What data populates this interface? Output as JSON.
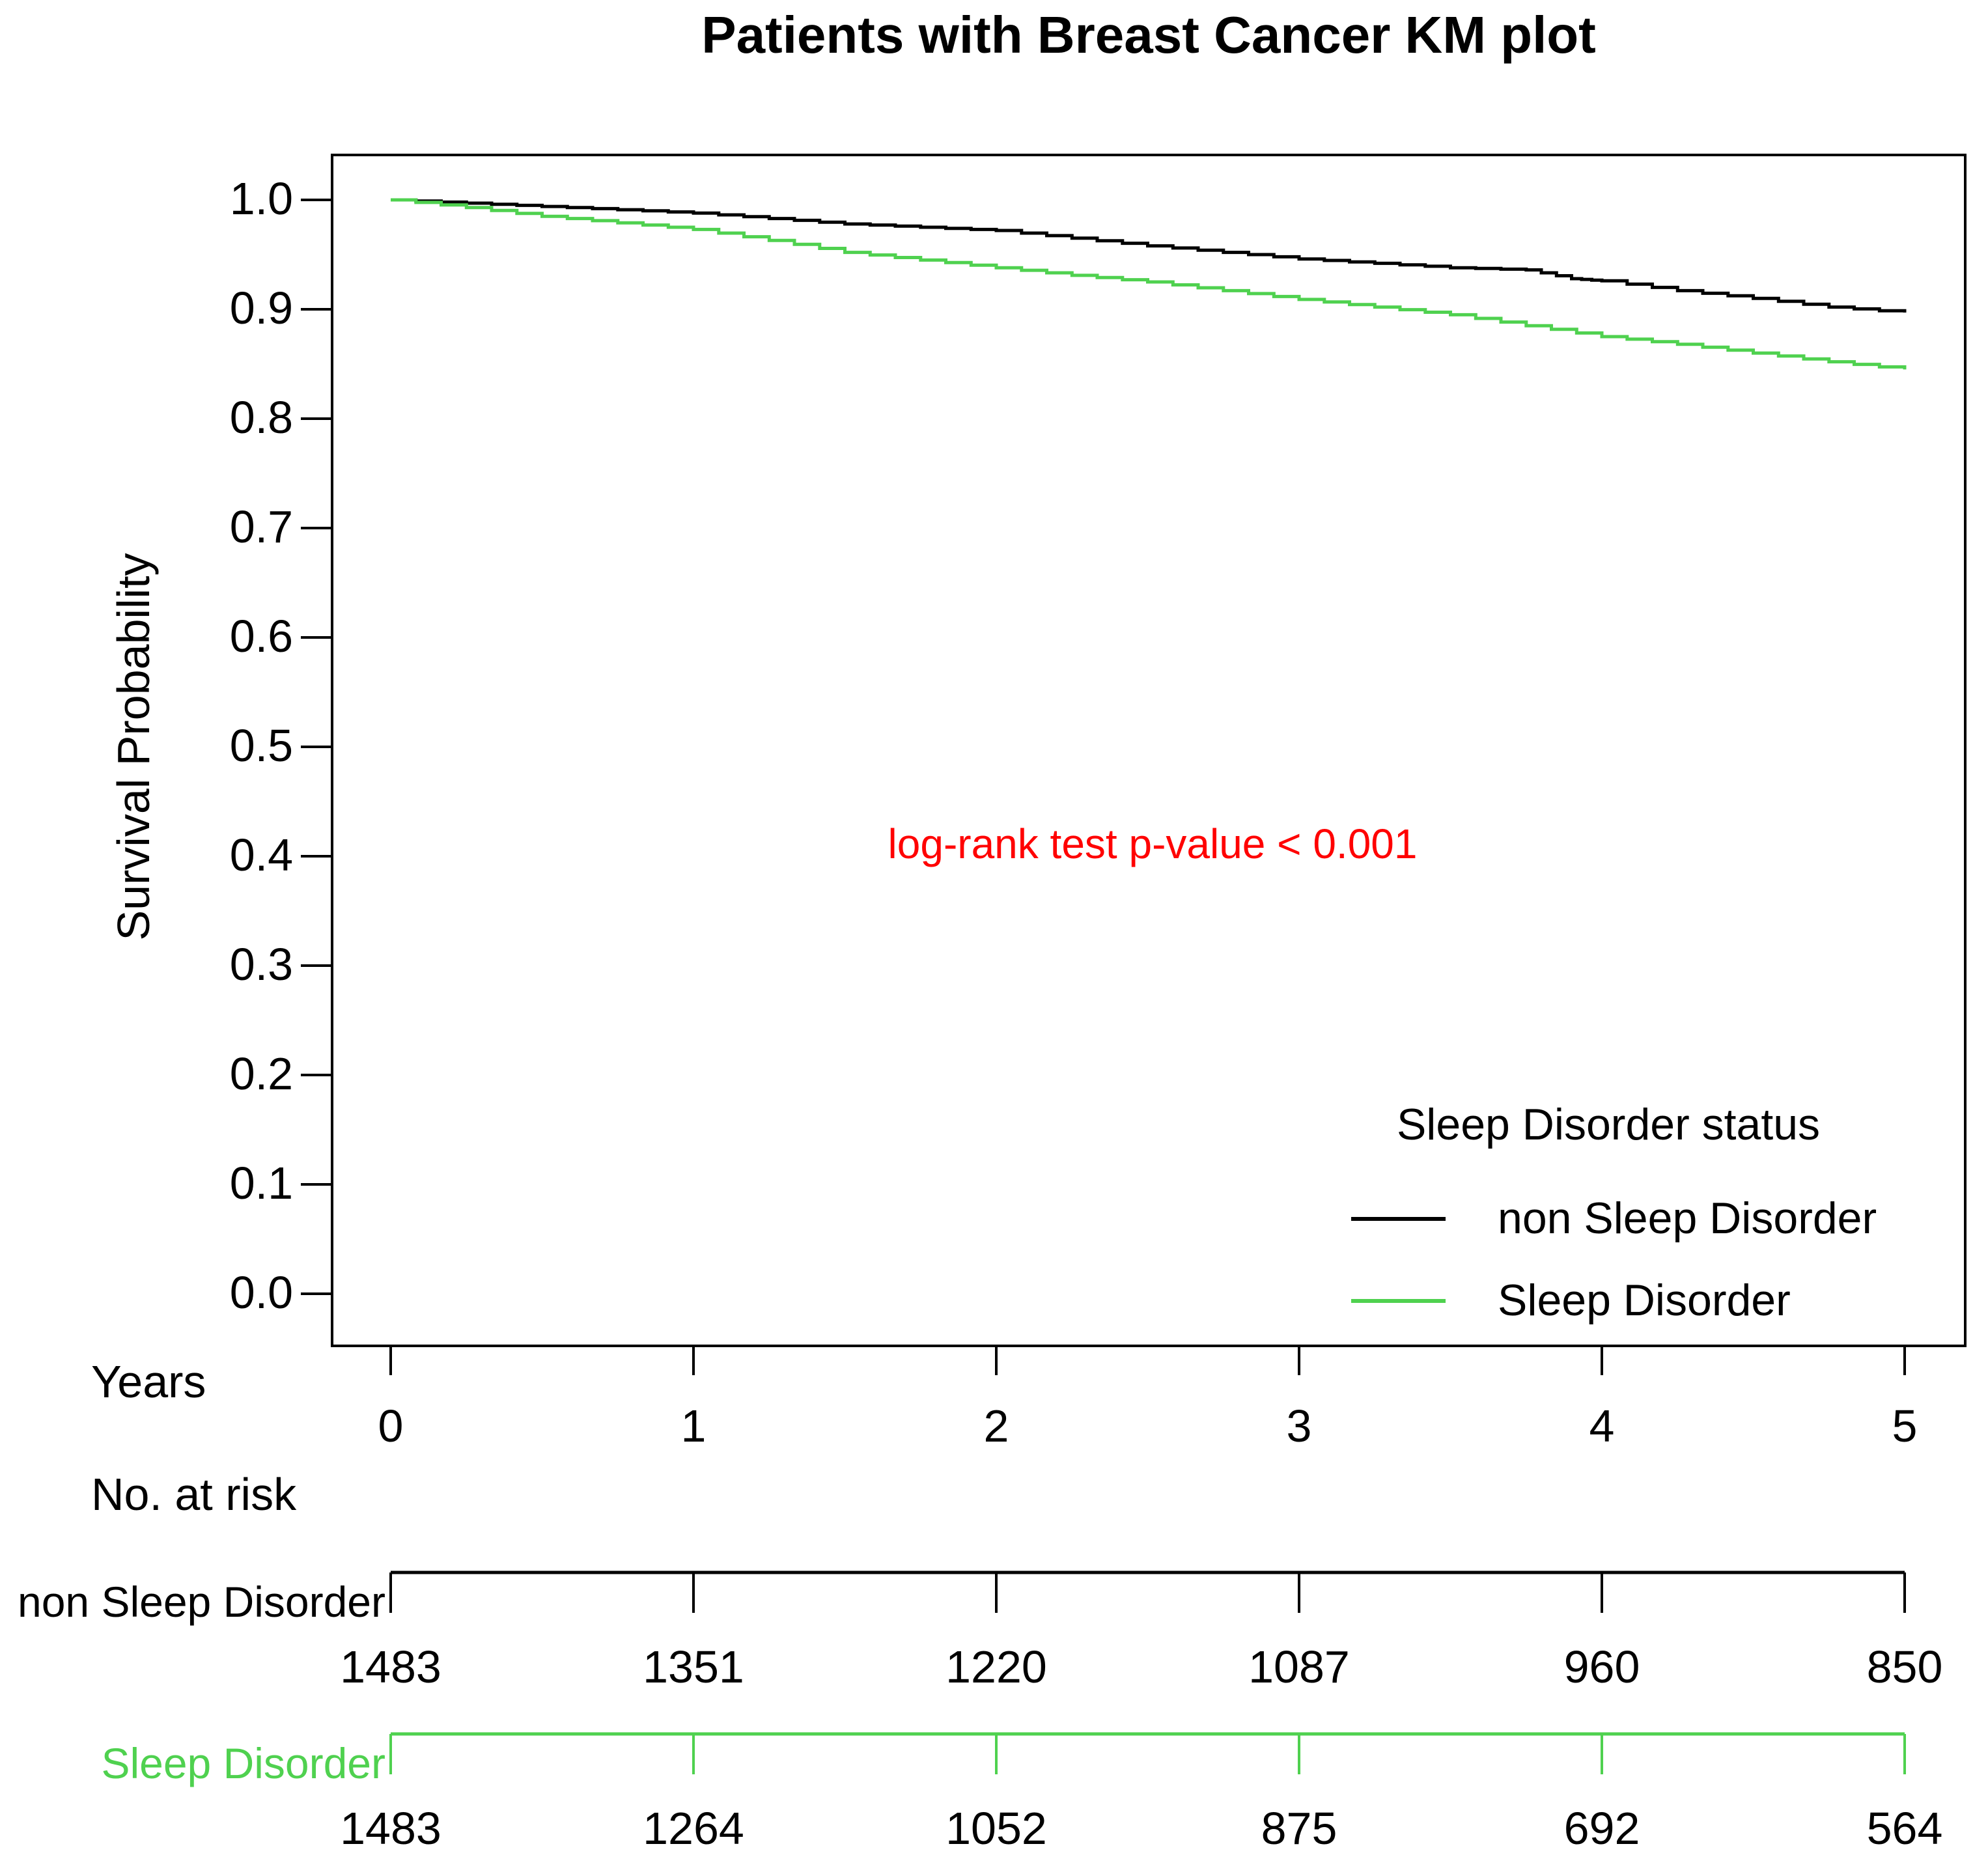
{
  "page": {
    "background": "#ffffff"
  },
  "chart_data": {
    "type": "line",
    "subtype": "kaplan-meier-step",
    "title": "Patients with Breast Cancer KM plot",
    "xlabel": "Years",
    "ylabel": "Survival Probability",
    "xlim": [
      0,
      5
    ],
    "ylim": [
      0.0,
      1.0
    ],
    "xticks": [
      0,
      1,
      2,
      3,
      4,
      5
    ],
    "yticks": [
      1.0,
      0.9,
      0.8,
      0.7,
      0.6,
      0.5,
      0.4,
      0.3,
      0.2,
      0.1,
      0.0
    ],
    "grid": false,
    "annotation": {
      "text": "log-rank test p-value < 0.001",
      "color": "#ff0000",
      "x": 2.5,
      "y": 0.42
    },
    "legend": {
      "title": "Sleep Disorder status",
      "position": "bottom-right"
    },
    "series": [
      {
        "name": "non Sleep Disorder",
        "color": "#000000",
        "x": [
          0,
          0.25,
          0.5,
          0.75,
          1,
          1.25,
          1.5,
          1.75,
          2,
          2.25,
          2.5,
          2.75,
          3,
          3.25,
          3.5,
          3.75,
          3.9,
          4,
          4.25,
          4.5,
          4.75,
          5
        ],
        "y": [
          1.0,
          0.997,
          0.994,
          0.991,
          0.988,
          0.983,
          0.978,
          0.975,
          0.972,
          0.965,
          0.958,
          0.952,
          0.946,
          0.942,
          0.938,
          0.936,
          0.928,
          0.926,
          0.917,
          0.91,
          0.902,
          0.897
        ]
      },
      {
        "name": "Sleep Disorder",
        "color": "#4fd14f",
        "x": [
          0,
          0.25,
          0.5,
          0.75,
          1,
          1.25,
          1.5,
          1.75,
          2,
          2.25,
          2.5,
          2.75,
          3,
          3.25,
          3.5,
          3.75,
          4,
          4.25,
          4.5,
          4.75,
          5
        ],
        "y": [
          1.0,
          0.993,
          0.985,
          0.979,
          0.973,
          0.963,
          0.952,
          0.945,
          0.938,
          0.931,
          0.925,
          0.917,
          0.909,
          0.902,
          0.895,
          0.885,
          0.875,
          0.868,
          0.86,
          0.852,
          0.845
        ]
      }
    ]
  },
  "risk_table": {
    "heading": "No. at risk",
    "timepoints": [
      0,
      1,
      2,
      3,
      4,
      5
    ],
    "rows": [
      {
        "name": "non Sleep Disorder",
        "color": "#000000",
        "values": [
          "1483",
          "1351",
          "1220",
          "1087",
          "960",
          "850"
        ]
      },
      {
        "name": "Sleep Disorder",
        "color": "#4fd14f",
        "values": [
          "1483",
          "1264",
          "1052",
          "875",
          "692",
          "564"
        ]
      }
    ]
  }
}
